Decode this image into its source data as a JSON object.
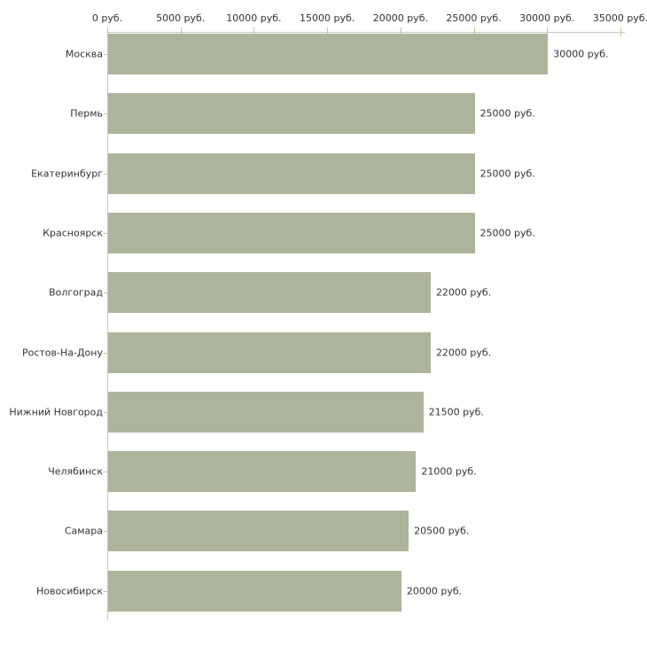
{
  "chart_data": {
    "type": "bar",
    "orientation": "horizontal",
    "title": "",
    "xlabel": "",
    "ylabel": "",
    "unit_suffix": " руб.",
    "categories": [
      "Москва",
      "Пермь",
      "Екатеринбург",
      "Красноярск",
      "Волгоград",
      "Ростов-На-Дону",
      "Нижний Новгород",
      "Челябинск",
      "Самара",
      "Новосибирск"
    ],
    "values": [
      30000,
      25000,
      25000,
      25000,
      22000,
      22000,
      21500,
      21000,
      20500,
      20000
    ],
    "bar_labels": [
      "30000 руб.",
      "25000 руб.",
      "25000 руб.",
      "25000 руб.",
      "22000 руб.",
      "22000 руб.",
      "21500 руб.",
      "21000 руб.",
      "20500 руб.",
      "20000 руб."
    ],
    "x_ticks": [
      0,
      5000,
      10000,
      15000,
      20000,
      25000,
      30000,
      35000
    ],
    "x_tick_labels": [
      "0 руб.",
      "5000 руб.",
      "10000 руб.",
      "15000 руб.",
      "20000 руб.",
      "25000 руб.",
      "30000 руб.",
      "35000 руб."
    ],
    "xlim": [
      0,
      35000
    ],
    "axis_position": "top",
    "grid": false,
    "legend": null,
    "colors": {
      "bar": "#adb49c",
      "axis_line": "#c6c6c6",
      "tick_mark": "#c9c190",
      "text": "#333333",
      "background": "#ffffff"
    }
  }
}
